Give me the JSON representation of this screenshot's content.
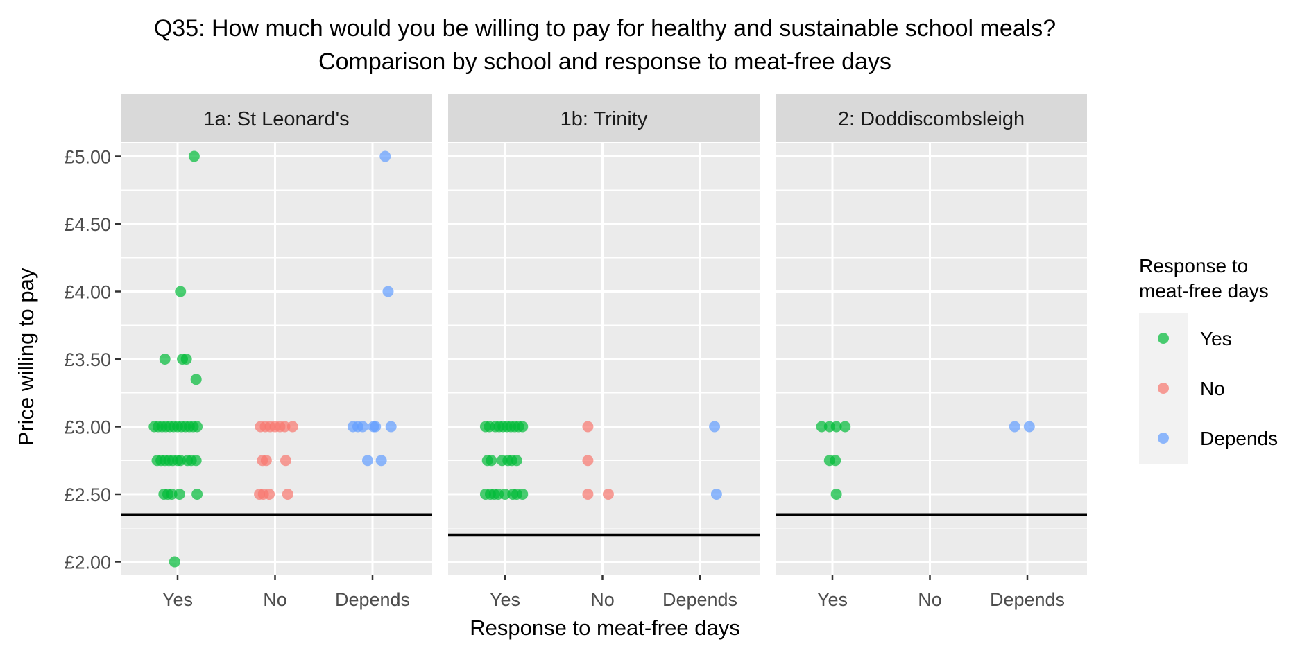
{
  "chart_data": {
    "type": "scatter",
    "title": "Q35: How much would you be willing to pay for healthy and sustainable school meals?",
    "subtitle": "Comparison by school and response to meat-free days",
    "xlabel": "Response to meat-free days",
    "ylabel": "Price willing to pay",
    "categories": [
      "Yes",
      "No",
      "Depends"
    ],
    "ylim": [
      1.9,
      5.1
    ],
    "yticks": [
      2.0,
      2.5,
      3.0,
      3.5,
      4.0,
      4.5,
      5.0
    ],
    "ytick_labels": [
      "£2.00",
      "£2.50",
      "£3.00",
      "£3.50",
      "£4.00",
      "£4.50",
      "£5.00"
    ],
    "grid": true,
    "legend": {
      "title_line1": "Response to",
      "title_line2": "meat-free days",
      "placement": "right",
      "entries": [
        {
          "label": "Yes",
          "color": "#00BA38"
        },
        {
          "label": "No",
          "color": "#F8766D"
        },
        {
          "label": "Depends",
          "color": "#619CFF"
        }
      ]
    },
    "colors": {
      "Yes": "#00BA38",
      "No": "#F8766D",
      "Depends": "#619CFF"
    },
    "facets": [
      {
        "label": "1a: St Leonard's",
        "reference_line": 2.35,
        "points": [
          {
            "x": 0.17,
            "y": 5.0,
            "group": "Yes"
          },
          {
            "x": 0.03,
            "y": 4.0,
            "group": "Yes"
          },
          {
            "x": -0.13,
            "y": 3.5,
            "group": "Yes"
          },
          {
            "x": 0.05,
            "y": 3.5,
            "group": "Yes"
          },
          {
            "x": 0.09,
            "y": 3.5,
            "group": "Yes"
          },
          {
            "x": 0.19,
            "y": 3.35,
            "group": "Yes"
          },
          {
            "x": -0.24,
            "y": 3.0,
            "group": "Yes"
          },
          {
            "x": -0.2,
            "y": 3.0,
            "group": "Yes"
          },
          {
            "x": -0.16,
            "y": 3.0,
            "group": "Yes"
          },
          {
            "x": -0.12,
            "y": 3.0,
            "group": "Yes"
          },
          {
            "x": -0.08,
            "y": 3.0,
            "group": "Yes"
          },
          {
            "x": -0.04,
            "y": 3.0,
            "group": "Yes"
          },
          {
            "x": 0.0,
            "y": 3.0,
            "group": "Yes"
          },
          {
            "x": 0.04,
            "y": 3.0,
            "group": "Yes"
          },
          {
            "x": 0.08,
            "y": 3.0,
            "group": "Yes"
          },
          {
            "x": 0.12,
            "y": 3.0,
            "group": "Yes"
          },
          {
            "x": 0.16,
            "y": 3.0,
            "group": "Yes"
          },
          {
            "x": 0.2,
            "y": 3.0,
            "group": "Yes"
          },
          {
            "x": -0.21,
            "y": 2.75,
            "group": "Yes"
          },
          {
            "x": -0.17,
            "y": 2.75,
            "group": "Yes"
          },
          {
            "x": -0.13,
            "y": 2.75,
            "group": "Yes"
          },
          {
            "x": -0.09,
            "y": 2.75,
            "group": "Yes"
          },
          {
            "x": -0.05,
            "y": 2.75,
            "group": "Yes"
          },
          {
            "x": 0.0,
            "y": 2.75,
            "group": "Yes"
          },
          {
            "x": 0.03,
            "y": 2.75,
            "group": "Yes"
          },
          {
            "x": 0.1,
            "y": 2.75,
            "group": "Yes"
          },
          {
            "x": 0.14,
            "y": 2.75,
            "group": "Yes"
          },
          {
            "x": 0.19,
            "y": 2.75,
            "group": "Yes"
          },
          {
            "x": -0.14,
            "y": 2.5,
            "group": "Yes"
          },
          {
            "x": -0.1,
            "y": 2.5,
            "group": "Yes"
          },
          {
            "x": -0.06,
            "y": 2.5,
            "group": "Yes"
          },
          {
            "x": 0.02,
            "y": 2.5,
            "group": "Yes"
          },
          {
            "x": 0.2,
            "y": 2.5,
            "group": "Yes"
          },
          {
            "x": -0.03,
            "y": 2.0,
            "group": "Yes"
          },
          {
            "x": 0.85,
            "y": 3.0,
            "group": "No"
          },
          {
            "x": 0.9,
            "y": 3.0,
            "group": "No"
          },
          {
            "x": 0.95,
            "y": 3.0,
            "group": "No"
          },
          {
            "x": 1.0,
            "y": 3.0,
            "group": "No"
          },
          {
            "x": 1.05,
            "y": 3.0,
            "group": "No"
          },
          {
            "x": 1.1,
            "y": 3.0,
            "group": "No"
          },
          {
            "x": 1.18,
            "y": 3.0,
            "group": "No"
          },
          {
            "x": 0.87,
            "y": 2.75,
            "group": "No"
          },
          {
            "x": 0.91,
            "y": 2.75,
            "group": "No"
          },
          {
            "x": 1.11,
            "y": 2.75,
            "group": "No"
          },
          {
            "x": 0.84,
            "y": 2.5,
            "group": "No"
          },
          {
            "x": 0.88,
            "y": 2.5,
            "group": "No"
          },
          {
            "x": 0.94,
            "y": 2.5,
            "group": "No"
          },
          {
            "x": 1.13,
            "y": 2.5,
            "group": "No"
          },
          {
            "x": 2.13,
            "y": 5.0,
            "group": "Depends"
          },
          {
            "x": 2.16,
            "y": 4.0,
            "group": "Depends"
          },
          {
            "x": 1.8,
            "y": 3.0,
            "group": "Depends"
          },
          {
            "x": 1.85,
            "y": 3.0,
            "group": "Depends"
          },
          {
            "x": 1.9,
            "y": 3.0,
            "group": "Depends"
          },
          {
            "x": 2.01,
            "y": 3.0,
            "group": "Depends"
          },
          {
            "x": 2.03,
            "y": 3.0,
            "group": "Depends"
          },
          {
            "x": 2.19,
            "y": 3.0,
            "group": "Depends"
          },
          {
            "x": 1.95,
            "y": 2.75,
            "group": "Depends"
          },
          {
            "x": 2.09,
            "y": 2.75,
            "group": "Depends"
          }
        ]
      },
      {
        "label": "1b: Trinity",
        "reference_line": 2.2,
        "points": [
          {
            "x": -0.2,
            "y": 3.0,
            "group": "Yes"
          },
          {
            "x": -0.16,
            "y": 3.0,
            "group": "Yes"
          },
          {
            "x": -0.1,
            "y": 3.0,
            "group": "Yes"
          },
          {
            "x": -0.06,
            "y": 3.0,
            "group": "Yes"
          },
          {
            "x": -0.02,
            "y": 3.0,
            "group": "Yes"
          },
          {
            "x": 0.02,
            "y": 3.0,
            "group": "Yes"
          },
          {
            "x": 0.06,
            "y": 3.0,
            "group": "Yes"
          },
          {
            "x": 0.1,
            "y": 3.0,
            "group": "Yes"
          },
          {
            "x": 0.14,
            "y": 3.0,
            "group": "Yes"
          },
          {
            "x": 0.18,
            "y": 3.0,
            "group": "Yes"
          },
          {
            "x": -0.18,
            "y": 2.75,
            "group": "Yes"
          },
          {
            "x": -0.14,
            "y": 2.75,
            "group": "Yes"
          },
          {
            "x": -0.03,
            "y": 2.75,
            "group": "Yes"
          },
          {
            "x": 0.03,
            "y": 2.75,
            "group": "Yes"
          },
          {
            "x": 0.07,
            "y": 2.75,
            "group": "Yes"
          },
          {
            "x": 0.12,
            "y": 2.75,
            "group": "Yes"
          },
          {
            "x": -0.2,
            "y": 2.5,
            "group": "Yes"
          },
          {
            "x": -0.15,
            "y": 2.5,
            "group": "Yes"
          },
          {
            "x": -0.11,
            "y": 2.5,
            "group": "Yes"
          },
          {
            "x": -0.07,
            "y": 2.5,
            "group": "Yes"
          },
          {
            "x": 0.0,
            "y": 2.5,
            "group": "Yes"
          },
          {
            "x": 0.08,
            "y": 2.5,
            "group": "Yes"
          },
          {
            "x": 0.12,
            "y": 2.5,
            "group": "Yes"
          },
          {
            "x": 0.18,
            "y": 2.5,
            "group": "Yes"
          },
          {
            "x": 0.85,
            "y": 3.0,
            "group": "No"
          },
          {
            "x": 0.85,
            "y": 2.75,
            "group": "No"
          },
          {
            "x": 0.85,
            "y": 2.5,
            "group": "No"
          },
          {
            "x": 1.06,
            "y": 2.5,
            "group": "No"
          },
          {
            "x": 2.15,
            "y": 3.0,
            "group": "Depends"
          },
          {
            "x": 2.17,
            "y": 2.5,
            "group": "Depends"
          }
        ]
      },
      {
        "label": "2: Doddiscombsleigh",
        "reference_line": 2.35,
        "points": [
          {
            "x": -0.11,
            "y": 3.0,
            "group": "Yes"
          },
          {
            "x": -0.03,
            "y": 3.0,
            "group": "Yes"
          },
          {
            "x": 0.04,
            "y": 3.0,
            "group": "Yes"
          },
          {
            "x": 0.13,
            "y": 3.0,
            "group": "Yes"
          },
          {
            "x": -0.03,
            "y": 2.75,
            "group": "Yes"
          },
          {
            "x": 0.03,
            "y": 2.75,
            "group": "Yes"
          },
          {
            "x": 0.04,
            "y": 2.5,
            "group": "Yes"
          },
          {
            "x": 1.87,
            "y": 3.0,
            "group": "Depends"
          },
          {
            "x": 2.02,
            "y": 3.0,
            "group": "Depends"
          }
        ]
      }
    ]
  }
}
